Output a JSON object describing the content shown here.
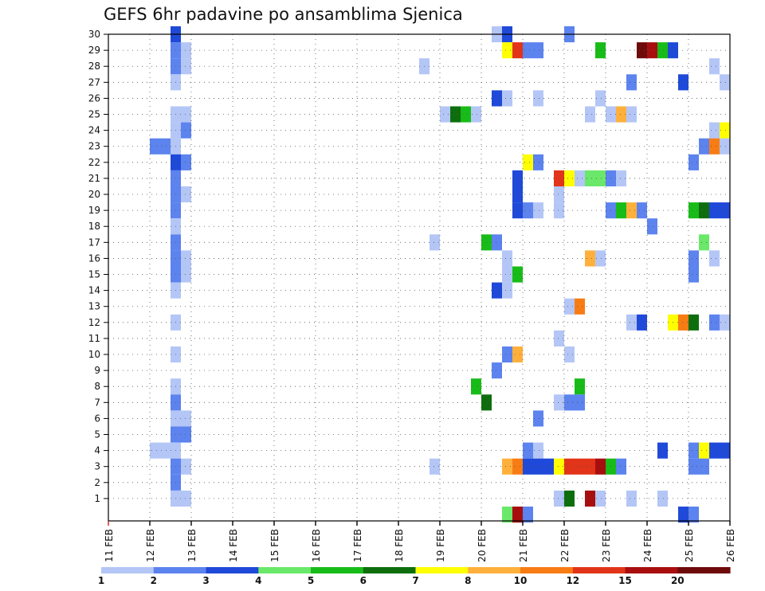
{
  "chart_data": {
    "type": "heatmap",
    "title": "GEFS 6hr padavine po ansamblima Sjenica",
    "x_ticks": [
      "11 FEB",
      "12 FEB",
      "13 FEB",
      "14 FEB",
      "15 FEB",
      "16 FEB",
      "17 FEB",
      "18 FEB",
      "19 FEB",
      "20 FEB",
      "21 FEB",
      "22 FEB",
      "23 FEB",
      "24 FEB",
      "25 FEB",
      "26 FEB"
    ],
    "y_ticks": [
      "1",
      "2",
      "3",
      "4",
      "5",
      "6",
      "7",
      "8",
      "9",
      "10",
      "11",
      "12",
      "13",
      "14",
      "15",
      "16",
      "17",
      "18",
      "19",
      "20",
      "21",
      "22",
      "23",
      "24",
      "25",
      "26",
      "27",
      "28",
      "29",
      "30"
    ],
    "xlim": [
      "11 FEB 00Z",
      "26 FEB 00Z"
    ],
    "ylim": [
      0,
      30
    ],
    "grid": true,
    "colorbar": {
      "labels": [
        "1",
        "2",
        "3",
        "4",
        "5",
        "6",
        "7",
        "8",
        "10",
        "12",
        "15",
        "20"
      ],
      "colors": [
        "#b4c6f6",
        "#5c83ee",
        "#1f49d8",
        "#6ae86a",
        "#18bc18",
        "#0e6e0e",
        "#ffff00",
        "#ffb03c",
        "#f87c14",
        "#e23418",
        "#a80e0e",
        "#6e0a0a"
      ]
    },
    "cells": [
      {
        "day": "12 FEB",
        "h": 12,
        "m": 30,
        "v": 3
      },
      {
        "day": "12 FEB",
        "h": 12,
        "m": 29,
        "v": 2
      },
      {
        "day": "12 FEB",
        "h": 18,
        "m": 29,
        "v": 1
      },
      {
        "day": "12 FEB",
        "h": 12,
        "m": 28,
        "v": 2
      },
      {
        "day": "12 FEB",
        "h": 18,
        "m": 28,
        "v": 1
      },
      {
        "day": "12 FEB",
        "h": 12,
        "m": 27,
        "v": 1
      },
      {
        "day": "12 FEB",
        "h": 12,
        "m": 25,
        "v": 1
      },
      {
        "day": "12 FEB",
        "h": 18,
        "m": 25,
        "v": 1
      },
      {
        "day": "12 FEB",
        "h": 12,
        "m": 24,
        "v": 1
      },
      {
        "day": "12 FEB",
        "h": 18,
        "m": 24,
        "v": 2
      },
      {
        "day": "12 FEB",
        "h": 0,
        "m": 23,
        "v": 2
      },
      {
        "day": "12 FEB",
        "h": 6,
        "m": 23,
        "v": 2
      },
      {
        "day": "12 FEB",
        "h": 12,
        "m": 23,
        "v": 1
      },
      {
        "day": "12 FEB",
        "h": 12,
        "m": 22,
        "v": 3
      },
      {
        "day": "12 FEB",
        "h": 18,
        "m": 22,
        "v": 2
      },
      {
        "day": "12 FEB",
        "h": 12,
        "m": 21,
        "v": 2
      },
      {
        "day": "12 FEB",
        "h": 12,
        "m": 20,
        "v": 2
      },
      {
        "day": "12 FEB",
        "h": 18,
        "m": 20,
        "v": 1
      },
      {
        "day": "12 FEB",
        "h": 12,
        "m": 19,
        "v": 2
      },
      {
        "day": "12 FEB",
        "h": 12,
        "m": 18,
        "v": 1
      },
      {
        "day": "12 FEB",
        "h": 12,
        "m": 17,
        "v": 2
      },
      {
        "day": "12 FEB",
        "h": 12,
        "m": 16,
        "v": 2
      },
      {
        "day": "12 FEB",
        "h": 18,
        "m": 16,
        "v": 1
      },
      {
        "day": "12 FEB",
        "h": 12,
        "m": 15,
        "v": 2
      },
      {
        "day": "12 FEB",
        "h": 18,
        "m": 15,
        "v": 1
      },
      {
        "day": "12 FEB",
        "h": 12,
        "m": 14,
        "v": 1
      },
      {
        "day": "12 FEB",
        "h": 12,
        "m": 12,
        "v": 1
      },
      {
        "day": "12 FEB",
        "h": 12,
        "m": 10,
        "v": 1
      },
      {
        "day": "12 FEB",
        "h": 12,
        "m": 8,
        "v": 1
      },
      {
        "day": "12 FEB",
        "h": 12,
        "m": 7,
        "v": 2
      },
      {
        "day": "12 FEB",
        "h": 12,
        "m": 6,
        "v": 1
      },
      {
        "day": "12 FEB",
        "h": 18,
        "m": 6,
        "v": 1
      },
      {
        "day": "12 FEB",
        "h": 12,
        "m": 5,
        "v": 2
      },
      {
        "day": "12 FEB",
        "h": 18,
        "m": 5,
        "v": 2
      },
      {
        "day": "12 FEB",
        "h": 0,
        "m": 4,
        "v": 1
      },
      {
        "day": "12 FEB",
        "h": 6,
        "m": 4,
        "v": 1
      },
      {
        "day": "12 FEB",
        "h": 12,
        "m": 4,
        "v": 1
      },
      {
        "day": "12 FEB",
        "h": 12,
        "m": 3,
        "v": 2
      },
      {
        "day": "12 FEB",
        "h": 18,
        "m": 3,
        "v": 1
      },
      {
        "day": "12 FEB",
        "h": 12,
        "m": 2,
        "v": 2
      },
      {
        "day": "12 FEB",
        "h": 12,
        "m": 1,
        "v": 1
      },
      {
        "day": "12 FEB",
        "h": 18,
        "m": 1,
        "v": 1
      },
      {
        "day": "18 FEB",
        "h": 12,
        "m": 28,
        "v": 1
      },
      {
        "day": "18 FEB",
        "h": 18,
        "m": 17,
        "v": 1
      },
      {
        "day": "18 FEB",
        "h": 18,
        "m": 3,
        "v": 1
      },
      {
        "day": "19 FEB",
        "h": 0,
        "m": 25,
        "v": 1
      },
      {
        "day": "19 FEB",
        "h": 6,
        "m": 25,
        "v": 6
      },
      {
        "day": "19 FEB",
        "h": 12,
        "m": 25,
        "v": 5
      },
      {
        "day": "19 FEB",
        "h": 18,
        "m": 25,
        "v": 1
      },
      {
        "day": "19 FEB",
        "h": 18,
        "m": 8,
        "v": 5
      },
      {
        "day": "20 FEB",
        "h": 0,
        "m": 17,
        "v": 5
      },
      {
        "day": "20 FEB",
        "h": 6,
        "m": 17,
        "v": 2
      },
      {
        "day": "20 FEB",
        "h": 0,
        "m": 7,
        "v": 6
      },
      {
        "day": "20 FEB",
        "h": 6,
        "m": 30,
        "v": 1
      },
      {
        "day": "20 FEB",
        "h": 6,
        "m": 26,
        "v": 3
      },
      {
        "day": "20 FEB",
        "h": 6,
        "m": 14,
        "v": 3
      },
      {
        "day": "20 FEB",
        "h": 6,
        "m": 9,
        "v": 2
      },
      {
        "day": "20 FEB",
        "h": 12,
        "m": 30,
        "v": 3
      },
      {
        "day": "20 FEB",
        "h": 12,
        "m": 29,
        "v": 7
      },
      {
        "day": "20 FEB",
        "h": 12,
        "m": 26,
        "v": 1
      },
      {
        "day": "20 FEB",
        "h": 12,
        "m": 16,
        "v": 1
      },
      {
        "day": "20 FEB",
        "h": 12,
        "m": 15,
        "v": 1
      },
      {
        "day": "20 FEB",
        "h": 12,
        "m": 14,
        "v": 1
      },
      {
        "day": "20 FEB",
        "h": 12,
        "m": 10,
        "v": 2
      },
      {
        "day": "20 FEB",
        "h": 12,
        "m": 3,
        "v": 8
      },
      {
        "day": "20 FEB",
        "h": 12,
        "m": 0,
        "v": 4
      },
      {
        "day": "20 FEB",
        "h": 18,
        "m": 29,
        "v": 12
      },
      {
        "day": "20 FEB",
        "h": 18,
        "m": 21,
        "v": 3
      },
      {
        "day": "20 FEB",
        "h": 18,
        "m": 20,
        "v": 3
      },
      {
        "day": "20 FEB",
        "h": 18,
        "m": 19,
        "v": 3
      },
      {
        "day": "20 FEB",
        "h": 18,
        "m": 15,
        "v": 5
      },
      {
        "day": "20 FEB",
        "h": 18,
        "m": 10,
        "v": 8
      },
      {
        "day": "20 FEB",
        "h": 18,
        "m": 3,
        "v": 10
      },
      {
        "day": "20 FEB",
        "h": 18,
        "m": 0,
        "v": 15
      },
      {
        "day": "21 FEB",
        "h": 0,
        "m": 29,
        "v": 2
      },
      {
        "day": "21 FEB",
        "h": 0,
        "m": 22,
        "v": 7
      },
      {
        "day": "21 FEB",
        "h": 0,
        "m": 19,
        "v": 2
      },
      {
        "day": "21 FEB",
        "h": 0,
        "m": 4,
        "v": 2
      },
      {
        "day": "21 FEB",
        "h": 0,
        "m": 3,
        "v": 3
      },
      {
        "day": "21 FEB",
        "h": 0,
        "m": 0,
        "v": 2
      },
      {
        "day": "21 FEB",
        "h": 6,
        "m": 29,
        "v": 2
      },
      {
        "day": "21 FEB",
        "h": 6,
        "m": 26,
        "v": 1
      },
      {
        "day": "21 FEB",
        "h": 6,
        "m": 22,
        "v": 2
      },
      {
        "day": "21 FEB",
        "h": 6,
        "m": 19,
        "v": 1
      },
      {
        "day": "21 FEB",
        "h": 6,
        "m": 6,
        "v": 2
      },
      {
        "day": "21 FEB",
        "h": 6,
        "m": 4,
        "v": 1
      },
      {
        "day": "21 FEB",
        "h": 6,
        "m": 3,
        "v": 3
      },
      {
        "day": "21 FEB",
        "h": 12,
        "m": 3,
        "v": 3
      },
      {
        "day": "21 FEB",
        "h": 18,
        "m": 21,
        "v": 12
      },
      {
        "day": "21 FEB",
        "h": 18,
        "m": 20,
        "v": 1
      },
      {
        "day": "21 FEB",
        "h": 18,
        "m": 19,
        "v": 1
      },
      {
        "day": "21 FEB",
        "h": 18,
        "m": 11,
        "v": 1
      },
      {
        "day": "21 FEB",
        "h": 18,
        "m": 7,
        "v": 1
      },
      {
        "day": "21 FEB",
        "h": 18,
        "m": 3,
        "v": 7
      },
      {
        "day": "21 FEB",
        "h": 18,
        "m": 1,
        "v": 1
      },
      {
        "day": "22 FEB",
        "h": 0,
        "m": 30,
        "v": 2
      },
      {
        "day": "22 FEB",
        "h": 0,
        "m": 21,
        "v": 7
      },
      {
        "day": "22 FEB",
        "h": 0,
        "m": 13,
        "v": 1
      },
      {
        "day": "22 FEB",
        "h": 0,
        "m": 10,
        "v": 1
      },
      {
        "day": "22 FEB",
        "h": 0,
        "m": 7,
        "v": 2
      },
      {
        "day": "22 FEB",
        "h": 0,
        "m": 3,
        "v": 12
      },
      {
        "day": "22 FEB",
        "h": 0,
        "m": 1,
        "v": 6
      },
      {
        "day": "22 FEB",
        "h": 6,
        "m": 21,
        "v": 1
      },
      {
        "day": "22 FEB",
        "h": 6,
        "m": 13,
        "v": 10
      },
      {
        "day": "22 FEB",
        "h": 6,
        "m": 8,
        "v": 5
      },
      {
        "day": "22 FEB",
        "h": 6,
        "m": 7,
        "v": 2
      },
      {
        "day": "22 FEB",
        "h": 6,
        "m": 3,
        "v": 12
      },
      {
        "day": "22 FEB",
        "h": 12,
        "m": 25,
        "v": 1
      },
      {
        "day": "22 FEB",
        "h": 12,
        "m": 21,
        "v": 4
      },
      {
        "day": "22 FEB",
        "h": 12,
        "m": 16,
        "v": 8
      },
      {
        "day": "22 FEB",
        "h": 12,
        "m": 3,
        "v": 12
      },
      {
        "day": "22 FEB",
        "h": 12,
        "m": 1,
        "v": 15
      },
      {
        "day": "22 FEB",
        "h": 18,
        "m": 29,
        "v": 5
      },
      {
        "day": "22 FEB",
        "h": 18,
        "m": 26,
        "v": 1
      },
      {
        "day": "22 FEB",
        "h": 18,
        "m": 21,
        "v": 4
      },
      {
        "day": "22 FEB",
        "h": 18,
        "m": 16,
        "v": 1
      },
      {
        "day": "22 FEB",
        "h": 18,
        "m": 3,
        "v": 15
      },
      {
        "day": "22 FEB",
        "h": 18,
        "m": 1,
        "v": 1
      },
      {
        "day": "23 FEB",
        "h": 0,
        "m": 25,
        "v": 1
      },
      {
        "day": "23 FEB",
        "h": 0,
        "m": 21,
        "v": 2
      },
      {
        "day": "23 FEB",
        "h": 0,
        "m": 19,
        "v": 2
      },
      {
        "day": "23 FEB",
        "h": 0,
        "m": 3,
        "v": 5
      },
      {
        "day": "23 FEB",
        "h": 6,
        "m": 25,
        "v": 8
      },
      {
        "day": "23 FEB",
        "h": 6,
        "m": 21,
        "v": 1
      },
      {
        "day": "23 FEB",
        "h": 6,
        "m": 19,
        "v": 5
      },
      {
        "day": "23 FEB",
        "h": 6,
        "m": 3,
        "v": 2
      },
      {
        "day": "23 FEB",
        "h": 12,
        "m": 27,
        "v": 2
      },
      {
        "day": "23 FEB",
        "h": 12,
        "m": 25,
        "v": 1
      },
      {
        "day": "23 FEB",
        "h": 12,
        "m": 19,
        "v": 8
      },
      {
        "day": "23 FEB",
        "h": 12,
        "m": 12,
        "v": 1
      },
      {
        "day": "23 FEB",
        "h": 12,
        "m": 1,
        "v": 1
      },
      {
        "day": "23 FEB",
        "h": 18,
        "m": 29,
        "v": 20
      },
      {
        "day": "23 FEB",
        "h": 18,
        "m": 19,
        "v": 2
      },
      {
        "day": "23 FEB",
        "h": 18,
        "m": 12,
        "v": 3
      },
      {
        "day": "24 FEB",
        "h": 0,
        "m": 29,
        "v": 15
      },
      {
        "day": "24 FEB",
        "h": 0,
        "m": 18,
        "v": 2
      },
      {
        "day": "24 FEB",
        "h": 6,
        "m": 29,
        "v": 5
      },
      {
        "day": "24 FEB",
        "h": 6,
        "m": 4,
        "v": 3
      },
      {
        "day": "24 FEB",
        "h": 6,
        "m": 1,
        "v": 1
      },
      {
        "day": "24 FEB",
        "h": 12,
        "m": 29,
        "v": 3
      },
      {
        "day": "24 FEB",
        "h": 12,
        "m": 12,
        "v": 7
      },
      {
        "day": "24 FEB",
        "h": 18,
        "m": 27,
        "v": 3
      },
      {
        "day": "24 FEB",
        "h": 18,
        "m": 12,
        "v": 10
      },
      {
        "day": "24 FEB",
        "h": 18,
        "m": 0,
        "v": 3
      },
      {
        "day": "25 FEB",
        "h": 0,
        "m": 22,
        "v": 2
      },
      {
        "day": "25 FEB",
        "h": 0,
        "m": 19,
        "v": 5
      },
      {
        "day": "25 FEB",
        "h": 0,
        "m": 16,
        "v": 2
      },
      {
        "day": "25 FEB",
        "h": 0,
        "m": 15,
        "v": 2
      },
      {
        "day": "25 FEB",
        "h": 0,
        "m": 12,
        "v": 6
      },
      {
        "day": "25 FEB",
        "h": 0,
        "m": 4,
        "v": 2
      },
      {
        "day": "25 FEB",
        "h": 0,
        "m": 3,
        "v": 2
      },
      {
        "day": "25 FEB",
        "h": 0,
        "m": 0,
        "v": 2
      },
      {
        "day": "25 FEB",
        "h": 6,
        "m": 23,
        "v": 2
      },
      {
        "day": "25 FEB",
        "h": 6,
        "m": 19,
        "v": 6
      },
      {
        "day": "25 FEB",
        "h": 6,
        "m": 17,
        "v": 4
      },
      {
        "day": "25 FEB",
        "h": 6,
        "m": 4,
        "v": 7
      },
      {
        "day": "25 FEB",
        "h": 6,
        "m": 3,
        "v": 2
      },
      {
        "day": "25 FEB",
        "h": 12,
        "m": 28,
        "v": 1
      },
      {
        "day": "25 FEB",
        "h": 12,
        "m": 24,
        "v": 1
      },
      {
        "day": "25 FEB",
        "h": 12,
        "m": 23,
        "v": 10
      },
      {
        "day": "25 FEB",
        "h": 12,
        "m": 19,
        "v": 3
      },
      {
        "day": "25 FEB",
        "h": 12,
        "m": 16,
        "v": 1
      },
      {
        "day": "25 FEB",
        "h": 12,
        "m": 4,
        "v": 3
      },
      {
        "day": "25 FEB",
        "h": 12,
        "m": 12,
        "v": 2
      },
      {
        "day": "25 FEB",
        "h": 18,
        "m": 27,
        "v": 1
      },
      {
        "day": "25 FEB",
        "h": 18,
        "m": 24,
        "v": 7
      },
      {
        "day": "25 FEB",
        "h": 18,
        "m": 23,
        "v": 1
      },
      {
        "day": "25 FEB",
        "h": 18,
        "m": 19,
        "v": 3
      },
      {
        "day": "25 FEB",
        "h": 18,
        "m": 12,
        "v": 1
      },
      {
        "day": "25 FEB",
        "h": 18,
        "m": 4,
        "v": 3
      }
    ]
  }
}
